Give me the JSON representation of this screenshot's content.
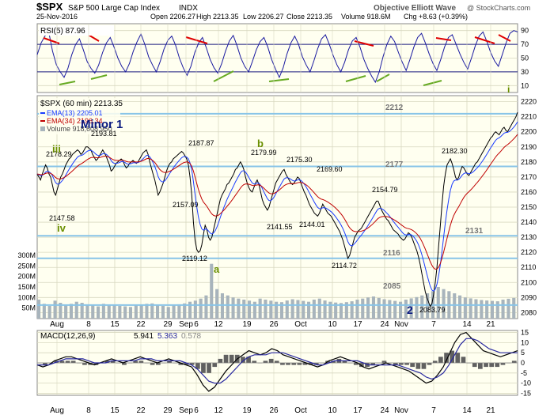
{
  "header": {
    "symbol": "$SPX",
    "name": "S&P 500 Large Cap Index",
    "exchange": "INDX",
    "date": "25-Nov-2016",
    "open": "Open 2206.27",
    "high": "High 2213.35",
    "low": "Low 2206.27",
    "close": "Close 2213.35",
    "volume": "Volume 918.6M",
    "change": "Chg +8.63 (+0.39%)",
    "brand": "@ StockCharts.com",
    "wave_label": "Objective Elliott Wave"
  },
  "colors": {
    "panel_bg": "#fffff0",
    "grid": "#d8d8c0",
    "price": "#000000",
    "ema13": "#1a3cff",
    "ema34": "#c00000",
    "rsi_line": "#1a1aa0",
    "rsi_trend_red": "#e00000",
    "rsi_trend_green": "#66aa22",
    "level_line": "#88c4e8",
    "wave_green": "#6a8f00",
    "wave_blue": "#0a1a80",
    "volume": "#a8b4bc",
    "macd": "#000000",
    "signal": "#2a2aa0",
    "histogram": "#606060"
  },
  "chart_data": [
    {
      "type": "line",
      "panel": "rsi",
      "title": "RSI(5) 87.96",
      "ylim": [
        0,
        100
      ],
      "y_ticks": [
        10,
        30,
        50,
        70,
        90
      ],
      "overbought": 70,
      "oversold": 30,
      "series": [
        {
          "values": [
            55,
            72,
            82,
            88,
            60,
            40,
            30,
            22,
            35,
            55,
            70,
            78,
            62,
            45,
            35,
            28,
            40,
            58,
            72,
            80,
            66,
            50,
            38,
            30,
            42,
            60,
            74,
            85,
            70,
            52,
            40,
            30,
            45,
            63,
            76,
            82,
            69,
            50,
            36,
            25,
            38,
            58,
            72,
            80,
            65,
            48,
            36,
            28,
            42,
            60,
            75,
            83,
            68,
            50,
            38,
            30,
            45,
            62,
            74,
            80,
            66,
            48,
            34,
            22,
            36,
            56,
            72,
            82,
            70,
            52,
            40,
            30,
            46,
            64,
            78,
            84,
            70,
            54,
            40,
            30,
            44,
            62,
            75,
            80,
            66,
            48,
            35,
            24,
            15,
            30,
            52,
            70,
            82,
            74,
            58,
            44,
            32,
            48,
            66,
            80,
            86,
            72,
            56,
            42,
            32,
            48,
            66,
            80,
            84,
            70,
            56,
            44,
            34,
            50,
            68,
            82,
            88,
            74,
            58,
            46,
            38,
            55,
            72,
            86,
            90,
            88
          ]
        }
      ]
    },
    {
      "type": "line",
      "panel": "price",
      "title": "$SPX (60 min) 2213.35",
      "ylim": [
        2076,
        2224
      ],
      "y_ticks": [
        2080,
        2090,
        2100,
        2110,
        2120,
        2130,
        2140,
        2150,
        2160,
        2170,
        2180,
        2190,
        2200,
        2210,
        2220
      ],
      "x_ticks": [
        "Aug",
        "8",
        "15",
        "22",
        "29",
        "Sep",
        "6",
        "12",
        "19",
        "26",
        "Oct",
        "10",
        "17",
        "24",
        "Nov",
        "7",
        "14",
        "21"
      ],
      "series": [
        {
          "name": "$SPX (60 min) 2213.35",
          "values": [
            2172,
            2170,
            2168,
            2172,
            2175,
            2178,
            2176,
            2172,
            2170,
            2165,
            2160,
            2158,
            2162,
            2166,
            2170,
            2172,
            2175,
            2178,
            2180,
            2182,
            2183,
            2185,
            2186,
            2187,
            2188,
            2187,
            2185,
            2186,
            2188,
            2190,
            2190,
            2189,
            2188,
            2185,
            2183,
            2181,
            2182,
            2184,
            2186,
            2188,
            2186,
            2184,
            2181,
            2178,
            2174,
            2175,
            2177,
            2179,
            2180,
            2181,
            2182,
            2181,
            2178,
            2176,
            2177,
            2179,
            2180,
            2181,
            2180,
            2179,
            2180,
            2182,
            2184,
            2186,
            2187,
            2188,
            2185,
            2180,
            2176,
            2172,
            2168,
            2163,
            2158,
            2160,
            2163,
            2166,
            2170,
            2174,
            2177,
            2179,
            2180,
            2182,
            2183,
            2184,
            2185,
            2186,
            2187,
            2186,
            2184,
            2182,
            2178,
            2170,
            2158,
            2140,
            2128,
            2122,
            2120,
            2121,
            2125,
            2132,
            2138,
            2135,
            2130,
            2128,
            2130,
            2135,
            2140,
            2145,
            2150,
            2155,
            2158,
            2160,
            2162,
            2165,
            2166,
            2168,
            2170,
            2172,
            2175,
            2176,
            2178,
            2180,
            2178,
            2175,
            2170,
            2166,
            2163,
            2161,
            2160,
            2163,
            2166,
            2168,
            2165,
            2160,
            2155,
            2152,
            2150,
            2148,
            2150,
            2154,
            2158,
            2162,
            2166,
            2168,
            2170,
            2172,
            2174,
            2175,
            2172,
            2170,
            2168,
            2166,
            2165,
            2166,
            2168,
            2170,
            2169,
            2166,
            2163,
            2160,
            2158,
            2155,
            2152,
            2150,
            2148,
            2146,
            2145,
            2144,
            2146,
            2149,
            2152,
            2150,
            2148,
            2146,
            2145,
            2144,
            2142,
            2140,
            2138,
            2136,
            2134,
            2131,
            2128,
            2124,
            2120,
            2116,
            2118,
            2122,
            2126,
            2130,
            2132,
            2134,
            2135,
            2136,
            2138,
            2140,
            2142,
            2144,
            2146,
            2148,
            2150,
            2152,
            2154,
            2154,
            2151,
            2148,
            2146,
            2144,
            2142,
            2141,
            2139,
            2137,
            2135,
            2134,
            2133,
            2132,
            2130,
            2129,
            2128,
            2129,
            2131,
            2133,
            2132,
            2130,
            2127,
            2124,
            2121,
            2117,
            2112,
            2106,
            2100,
            2094,
            2090,
            2087,
            2084,
            2086,
            2092,
            2100,
            2110,
            2124,
            2138,
            2152,
            2164,
            2172,
            2178,
            2180,
            2182,
            2179,
            2175,
            2170,
            2168,
            2170,
            2174,
            2177,
            2176,
            2174,
            2172,
            2171,
            2173,
            2175,
            2177,
            2179,
            2180,
            2182,
            2184,
            2186,
            2188,
            2190,
            2192,
            2194,
            2196,
            2197,
            2199,
            2200,
            2199,
            2198,
            2200,
            2202,
            2203,
            2201,
            2200,
            2202,
            2204,
            2206,
            2208,
            2210,
            2213
          ]
        },
        {
          "name": "EMA(13) 2205.01",
          "values": []
        },
        {
          "name": "EMA(34) 2196.34",
          "values": []
        }
      ],
      "legend": [
        "$SPX (60 min) 2213.35",
        "EMA(13) 2205.01",
        "EMA(34) 2196.34",
        "Volume 918,608,950"
      ],
      "horizontal_levels": [
        2212,
        2177,
        2131,
        2116,
        2085
      ],
      "price_labels": [
        "2178.29",
        "2147.58",
        "2193.81",
        "2187.87",
        "2157.09",
        "2119.12",
        "2179.99",
        "2141.55",
        "2175.30",
        "2144.01",
        "2169.60",
        "2114.72",
        "2154.79",
        "2182.30",
        "2083.79"
      ],
      "level_labels": [
        "2212",
        "2177",
        "2131",
        "2116",
        "2085"
      ],
      "wave_labels": [
        "iii",
        "iv",
        "Minor 1",
        "a",
        "b",
        "2",
        "i"
      ],
      "volume": {
        "y_ticks_labels": [
          "50M",
          "100M",
          "150M",
          "200M",
          "250M",
          "300M"
        ],
        "values": [
          90,
          70,
          60,
          85,
          75,
          65,
          70,
          80,
          75,
          68,
          62,
          58,
          70,
          66,
          64,
          60,
          58,
          55,
          62,
          66,
          70,
          72,
          65,
          60,
          55,
          62,
          68,
          72,
          80,
          85,
          95,
          110,
          260,
          140,
          120,
          110,
          100,
          95,
          90,
          85,
          80,
          95,
          90,
          85,
          80,
          78,
          86,
          92,
          88,
          84,
          80,
          90,
          95,
          86,
          80,
          76,
          74,
          78,
          82,
          90,
          95,
          100,
          105,
          98,
          92,
          88,
          84,
          80,
          90,
          96,
          102,
          110,
          120,
          130,
          150,
          140,
          130,
          120,
          110,
          100,
          96,
          92,
          88,
          86,
          84,
          82,
          90,
          94,
          98
        ]
      }
    },
    {
      "type": "line",
      "panel": "macd",
      "title": "MACD(12,26,9) 5.941, 5.363, 0.578",
      "ylim": [
        -16,
        16
      ],
      "y_ticks": [
        -15,
        -10,
        -5,
        0,
        5,
        10,
        15
      ],
      "legend": [
        "MACD(12,26,9)",
        "5.941",
        "5.363",
        "0.578"
      ],
      "series": [
        {
          "name": "MACD",
          "values": [
            -1,
            -2,
            -1,
            1,
            2,
            3,
            3,
            2,
            1,
            0,
            -1,
            0,
            1,
            2,
            1,
            0,
            1,
            2,
            3,
            2,
            1,
            0,
            1,
            2,
            1,
            0,
            -1,
            -2,
            -6,
            -11,
            -14,
            -12,
            -8,
            -4,
            -1,
            2,
            4,
            6,
            5,
            4,
            5,
            7,
            6,
            4,
            3,
            2,
            1,
            0,
            -1,
            -2,
            -1,
            1,
            2,
            3,
            2,
            1,
            0,
            -2,
            -3,
            -2,
            -1,
            0,
            -1,
            -2,
            -3,
            -4,
            -6,
            -8,
            -10,
            -9,
            -6,
            -2,
            4,
            10,
            14,
            15,
            12,
            9,
            6,
            5,
            4,
            3,
            4,
            5,
            6
          ]
        },
        {
          "name": "Signal",
          "values": [
            -1,
            -1,
            -1,
            0,
            1,
            2,
            2,
            2,
            2,
            1,
            0,
            0,
            0,
            1,
            1,
            1,
            1,
            1,
            2,
            2,
            2,
            1,
            1,
            1,
            1,
            1,
            0,
            -1,
            -3,
            -6,
            -9,
            -10,
            -10,
            -8,
            -5,
            -2,
            1,
            3,
            4,
            4,
            4,
            5,
            5,
            5,
            4,
            3,
            2,
            1,
            0,
            -1,
            -1,
            0,
            1,
            1,
            1,
            1,
            1,
            0,
            -1,
            -1,
            -1,
            -1,
            -1,
            -1,
            -2,
            -3,
            -4,
            -5,
            -7,
            -8,
            -7,
            -5,
            -1,
            4,
            9,
            12,
            12,
            11,
            9,
            7,
            6,
            5,
            5,
            5,
            5
          ]
        }
      ]
    }
  ]
}
